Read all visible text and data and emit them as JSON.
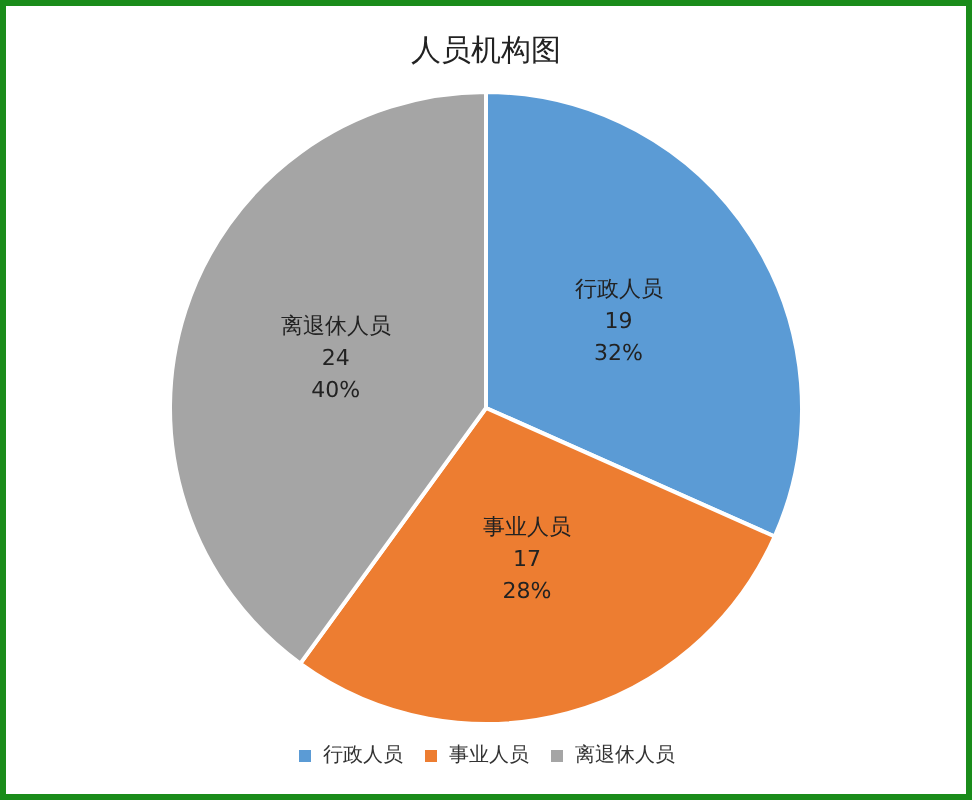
{
  "chart_data": {
    "type": "pie",
    "title": "人员机构图",
    "categories": [
      "行政人员",
      "事业人员",
      "离退休人员"
    ],
    "values": [
      19,
      17,
      24
    ],
    "colors": [
      "#5b9bd5",
      "#ed7d31",
      "#a5a5a5"
    ],
    "value_labels": [
      "19\n32%",
      "17\n28%",
      "24\n40%"
    ],
    "legend": "bottom"
  }
}
